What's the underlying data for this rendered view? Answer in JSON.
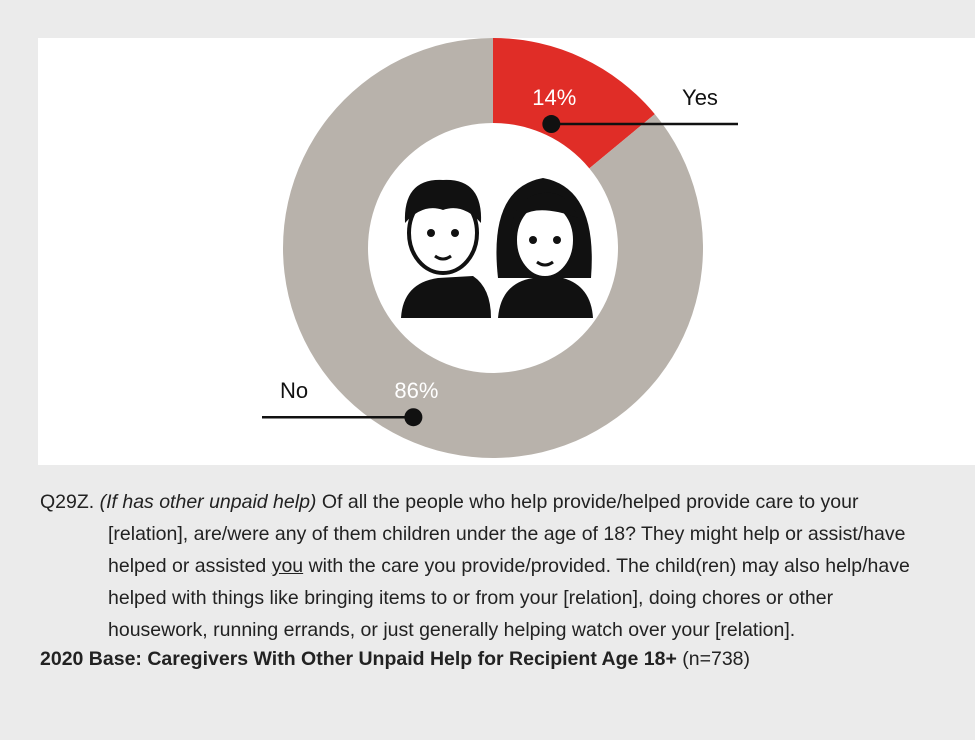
{
  "chart_data": {
    "type": "donut",
    "categories": [
      "Yes",
      "No"
    ],
    "values": [
      14,
      86
    ],
    "value_labels": [
      "14%",
      "86%"
    ],
    "colors": [
      "#e02d27",
      "#b8b2ab"
    ]
  },
  "question": {
    "number": "Q29Z.",
    "condition": "(If has other unpaid help)",
    "text_before": "Of all the people who help provide/helped provide care to your [relation], are/were any of them children under the age of 18? They might help or assist/have helped or assisted",
    "emphasis": "you",
    "text_after": "with the care you provide/provided. The child(ren) may also help/have helped with things like bringing items to or from your [relation], doing chores or other housework, running errands, or just generally helping watch over your [relation]."
  },
  "base": {
    "label": "2020 Base: Caregivers With Other Unpaid Help for Recipient Age 18+",
    "sample": "(n=738)"
  }
}
